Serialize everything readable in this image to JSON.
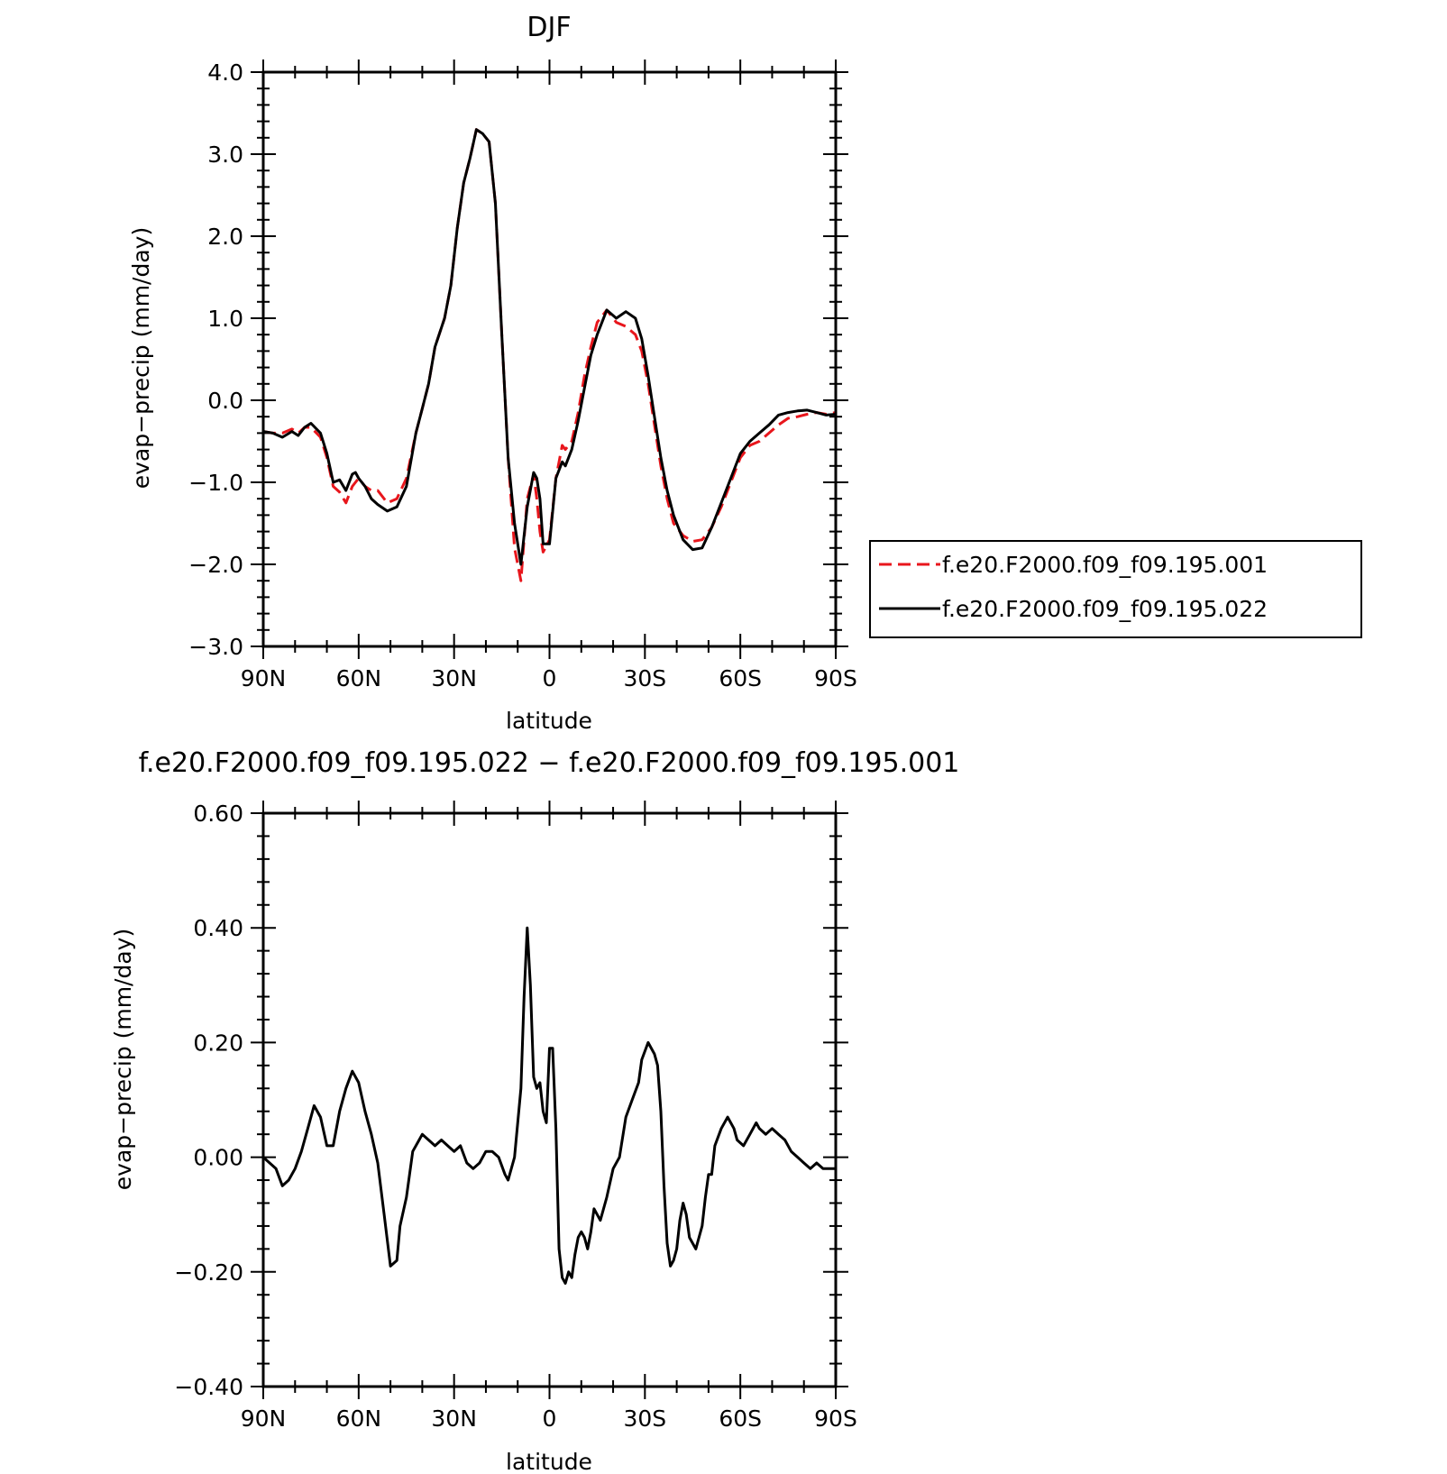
{
  "chart_data": [
    {
      "type": "line",
      "title": "DJF",
      "xlabel": "latitude",
      "ylabel": "evap−precip (mm/day)",
      "xlim": [
        90,
        -90
      ],
      "ylim": [
        -3.0,
        4.0
      ],
      "xticks": [
        90,
        60,
        30,
        0,
        -30,
        -60,
        -90
      ],
      "xtick_labels": [
        "90N",
        "60N",
        "30N",
        "0",
        "30S",
        "60S",
        "90S"
      ],
      "yticks": [
        -3.0,
        -2.0,
        -1.0,
        0.0,
        1.0,
        2.0,
        3.0,
        4.0
      ],
      "ytick_labels": [
        "−3.0",
        "−2.0",
        "−1.0",
        "0.0",
        "1.0",
        "2.0",
        "3.0",
        "4.0"
      ],
      "legend_position": "right",
      "series": [
        {
          "name": "f.e20.F2000.f09_f09.195.001",
          "color": "#e8161c",
          "dash": "dashed",
          "x": [
            90,
            87,
            84,
            81,
            79,
            77,
            75,
            72,
            70,
            68,
            66,
            64,
            62,
            61,
            60,
            58,
            56,
            54,
            51,
            48,
            45,
            42,
            40,
            38,
            36,
            33,
            31,
            29,
            27,
            25,
            23,
            21,
            19,
            17,
            15,
            13,
            11,
            9,
            7,
            5,
            4,
            3,
            2,
            0,
            -2,
            -4,
            -5,
            -7,
            -9,
            -11,
            -13,
            -15,
            -18,
            -21,
            -24,
            -27,
            -29,
            -31,
            -33,
            -35,
            -37,
            -39,
            -42,
            -45,
            -48,
            -51,
            -54,
            -57,
            -60,
            -63,
            -66,
            -69,
            -72,
            -75,
            -78,
            -81,
            -84,
            -87,
            -90
          ],
          "y": [
            -0.38,
            -0.4,
            -0.4,
            -0.35,
            -0.4,
            -0.33,
            -0.33,
            -0.45,
            -0.7,
            -1.05,
            -1.12,
            -1.25,
            -1.05,
            -1.0,
            -0.95,
            -1.05,
            -1.1,
            -1.1,
            -1.25,
            -1.2,
            -0.95,
            -0.4,
            -0.1,
            0.2,
            0.65,
            1.0,
            1.4,
            2.1,
            2.65,
            2.95,
            3.3,
            3.25,
            3.15,
            2.4,
            0.8,
            -0.7,
            -1.8,
            -2.2,
            -1.2,
            -0.9,
            -1.2,
            -1.6,
            -1.85,
            -1.7,
            -0.95,
            -0.55,
            -0.6,
            -0.5,
            -0.15,
            0.3,
            0.65,
            0.95,
            1.1,
            0.95,
            0.9,
            0.8,
            0.6,
            0.2,
            -0.3,
            -0.8,
            -1.2,
            -1.5,
            -1.65,
            -1.72,
            -1.7,
            -1.55,
            -1.3,
            -1.0,
            -0.7,
            -0.55,
            -0.5,
            -0.4,
            -0.3,
            -0.22,
            -0.2,
            -0.17,
            -0.15,
            -0.17,
            -0.15
          ]
        },
        {
          "name": "f.e20.F2000.f09_f09.195.022",
          "color": "#000000",
          "dash": "solid",
          "x": [
            90,
            87,
            84,
            81,
            79,
            77,
            75,
            72,
            70,
            68,
            66,
            64,
            62,
            61,
            60,
            58,
            56,
            54,
            51,
            48,
            45,
            42,
            40,
            38,
            36,
            33,
            31,
            29,
            27,
            25,
            23,
            21,
            19,
            17,
            15,
            13,
            11,
            9,
            7,
            5,
            4,
            3,
            2,
            0,
            -2,
            -4,
            -5,
            -7,
            -9,
            -11,
            -13,
            -15,
            -18,
            -21,
            -24,
            -27,
            -29,
            -31,
            -33,
            -35,
            -37,
            -39,
            -42,
            -45,
            -48,
            -51,
            -54,
            -57,
            -60,
            -63,
            -66,
            -69,
            -72,
            -75,
            -78,
            -81,
            -84,
            -87,
            -90
          ],
          "y": [
            -0.38,
            -0.4,
            -0.45,
            -0.38,
            -0.43,
            -0.33,
            -0.28,
            -0.4,
            -0.65,
            -1.0,
            -0.97,
            -1.1,
            -0.9,
            -0.88,
            -0.95,
            -1.05,
            -1.2,
            -1.27,
            -1.35,
            -1.3,
            -1.05,
            -0.4,
            -0.1,
            0.2,
            0.65,
            1.0,
            1.4,
            2.1,
            2.65,
            2.95,
            3.3,
            3.25,
            3.15,
            2.4,
            0.8,
            -0.7,
            -1.5,
            -2.0,
            -1.3,
            -0.88,
            -0.95,
            -1.2,
            -1.75,
            -1.75,
            -0.95,
            -0.75,
            -0.8,
            -0.6,
            -0.25,
            0.15,
            0.55,
            0.8,
            1.1,
            1.0,
            1.08,
            1.0,
            0.75,
            0.3,
            -0.2,
            -0.7,
            -1.1,
            -1.4,
            -1.7,
            -1.82,
            -1.8,
            -1.55,
            -1.25,
            -0.95,
            -0.65,
            -0.5,
            -0.4,
            -0.3,
            -0.18,
            -0.15,
            -0.13,
            -0.12,
            -0.15,
            -0.18,
            -0.17
          ]
        }
      ]
    },
    {
      "type": "line",
      "title": "f.e20.F2000.f09_f09.195.022 − f.e20.F2000.f09_f09.195.001",
      "xlabel": "latitude",
      "ylabel": "evap−precip (mm/day)",
      "xlim": [
        90,
        -90
      ],
      "ylim": [
        -0.4,
        0.6
      ],
      "xticks": [
        90,
        60,
        30,
        0,
        -30,
        -60,
        -90
      ],
      "xtick_labels": [
        "90N",
        "60N",
        "30N",
        "0",
        "30S",
        "60S",
        "90S"
      ],
      "yticks": [
        -0.4,
        -0.2,
        0.0,
        0.2,
        0.4,
        0.6
      ],
      "ytick_labels": [
        "−0.40",
        "−0.20",
        "0.00",
        "0.20",
        "0.40",
        "0.60"
      ],
      "series": [
        {
          "color": "#000000",
          "dash": "solid",
          "x": [
            90,
            88,
            86,
            84,
            82,
            80,
            78,
            76,
            74,
            72,
            70,
            68,
            66,
            64,
            62,
            60,
            58,
            56,
            54,
            52,
            50,
            48,
            47,
            45,
            43,
            41,
            40,
            38,
            36,
            34,
            32,
            30,
            28,
            26,
            24,
            22,
            20,
            18,
            16,
            14,
            13,
            11,
            9,
            8,
            7,
            6,
            5,
            4,
            3,
            2,
            1,
            0,
            -1,
            -2,
            -3,
            -4,
            -5,
            -6,
            -7,
            -8,
            -9,
            -10,
            -11,
            -12,
            -13,
            -14,
            -16,
            -18,
            -20,
            -22,
            -24,
            -26,
            -28,
            -29,
            -31,
            -33,
            -34,
            -35,
            -36,
            -37,
            -38,
            -39,
            -40,
            -41,
            -42,
            -43,
            -44,
            -46,
            -48,
            -49,
            -50,
            -51,
            -52,
            -54,
            -56,
            -58,
            -59,
            -61,
            -63,
            -65,
            -66,
            -68,
            -70,
            -72,
            -74,
            -76,
            -78,
            -80,
            -82,
            -84,
            -86,
            -88,
            -90
          ],
          "y": [
            0.0,
            -0.01,
            -0.02,
            -0.05,
            -0.04,
            -0.02,
            0.01,
            0.05,
            0.09,
            0.07,
            0.02,
            0.02,
            0.08,
            0.12,
            0.15,
            0.13,
            0.08,
            0.04,
            -0.01,
            -0.1,
            -0.19,
            -0.18,
            -0.12,
            -0.07,
            0.01,
            0.03,
            0.04,
            0.03,
            0.02,
            0.03,
            0.02,
            0.01,
            0.02,
            -0.01,
            -0.02,
            -0.01,
            0.01,
            0.01,
            0.0,
            -0.03,
            -0.04,
            0.0,
            0.12,
            0.28,
            0.4,
            0.3,
            0.14,
            0.12,
            0.13,
            0.08,
            0.06,
            0.19,
            0.19,
            0.05,
            -0.16,
            -0.21,
            -0.22,
            -0.2,
            -0.21,
            -0.17,
            -0.14,
            -0.13,
            -0.14,
            -0.16,
            -0.13,
            -0.09,
            -0.11,
            -0.07,
            -0.02,
            0.0,
            0.07,
            0.1,
            0.13,
            0.17,
            0.2,
            0.18,
            0.16,
            0.08,
            -0.05,
            -0.15,
            -0.19,
            -0.18,
            -0.16,
            -0.11,
            -0.08,
            -0.1,
            -0.14,
            -0.16,
            -0.12,
            -0.07,
            -0.03,
            -0.03,
            0.02,
            0.05,
            0.07,
            0.05,
            0.03,
            0.02,
            0.04,
            0.06,
            0.05,
            0.04,
            0.05,
            0.04,
            0.03,
            0.01,
            0.0,
            -0.01,
            -0.02,
            -0.01,
            -0.02,
            -0.02,
            -0.02
          ]
        }
      ]
    }
  ]
}
